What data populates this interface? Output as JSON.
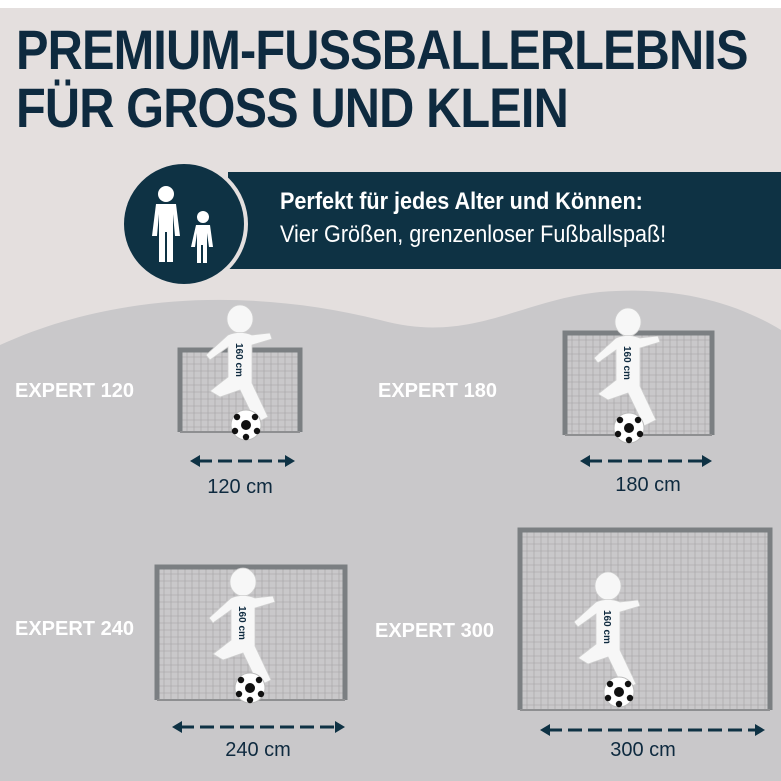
{
  "header": {
    "line1": "PREMIUM-FUSSBALLERLEBNIS",
    "line2": "FÜR GROSS UND KLEIN"
  },
  "banner": {
    "icon": "adult-and-child-icon",
    "line1": "Perfekt für jedes Alter und Können:",
    "line2": "Vier Größen, grenzenloser Fußballspaß!"
  },
  "products": [
    {
      "model": "EXPERT 120",
      "width": "120 cm",
      "figure_height": "160 cm"
    },
    {
      "model": "EXPERT 180",
      "width": "180 cm",
      "figure_height": "160 cm"
    },
    {
      "model": "EXPERT 240",
      "width": "240 cm",
      "figure_height": "160 cm"
    },
    {
      "model": "EXPERT 300",
      "width": "300 cm",
      "figure_height": "160 cm"
    }
  ],
  "colors": {
    "navy": "#0e3244",
    "background_light": "#e4dfde",
    "background_grey": "#c9c8ca"
  }
}
